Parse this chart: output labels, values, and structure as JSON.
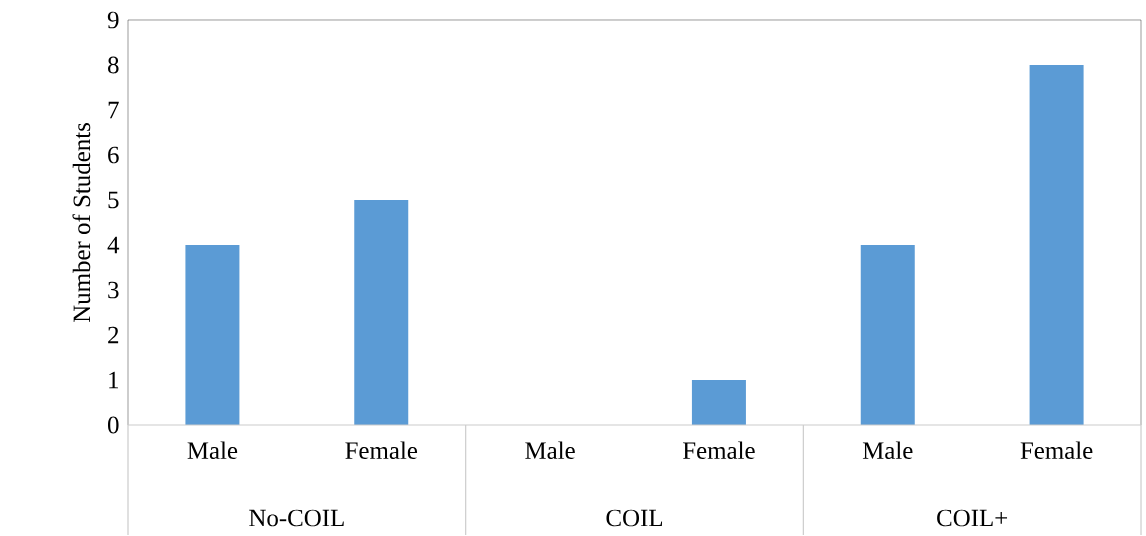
{
  "chart_data": {
    "type": "bar",
    "ylabel": "Number of Students",
    "categories": [
      "Male",
      "Female",
      "Male",
      "Female",
      "Male",
      "Female"
    ],
    "values": [
      4,
      5,
      0,
      1,
      4,
      8
    ],
    "color": "#5b9bd5",
    "annotations": [
      "No-COIL",
      "COIL",
      "COIL+"
    ],
    "ylim": [
      0,
      9
    ],
    "yticks": [
      0,
      1,
      2,
      3,
      4,
      5,
      6,
      7,
      8,
      9
    ],
    "grid": false
  }
}
